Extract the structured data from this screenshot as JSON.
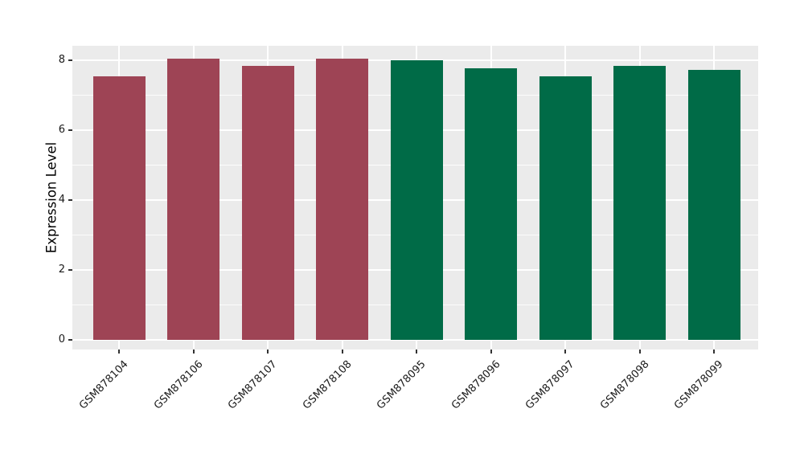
{
  "chart_data": {
    "type": "bar",
    "title": "",
    "xlabel": "",
    "ylabel": "Expression Level",
    "categories": [
      "GSM878104",
      "GSM878106",
      "GSM878107",
      "GSM878108",
      "GSM878095",
      "GSM878096",
      "GSM878097",
      "GSM878098",
      "GSM878099"
    ],
    "values": [
      7.55,
      8.05,
      7.85,
      8.05,
      8.0,
      7.78,
      7.55,
      7.85,
      7.72
    ],
    "bar_colors": [
      "#9E4455",
      "#9E4455",
      "#9E4455",
      "#9E4455",
      "#006B47",
      "#006B47",
      "#006B47",
      "#006B47",
      "#006B47"
    ],
    "yticks": [
      "0",
      "2",
      "4",
      "6",
      "8"
    ],
    "ytick_values": [
      0,
      2,
      4,
      6,
      8
    ],
    "minor_ytick_values": [
      1,
      3,
      5,
      7
    ],
    "ylim": [
      -0.28,
      8.41
    ],
    "grid": "on",
    "legend_position": "none",
    "panel_background": "#EBEBEB",
    "grid_color": "#FFFFFF",
    "tick_color": "#333333",
    "tick_label_color": "#1A1A1A",
    "axis_title_color": "#000000"
  }
}
